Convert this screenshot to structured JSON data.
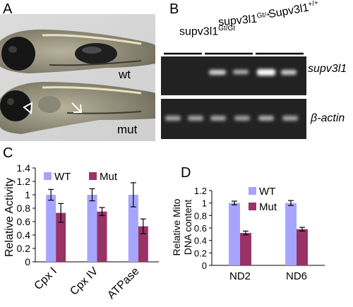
{
  "panels": {
    "a": {
      "label": "A",
      "fish_top_label": "wt",
      "fish_bottom_label": "mut"
    },
    "b": {
      "label": "B",
      "lanes": [
        {
          "main": "supv3l1",
          "sup": "Gt/Gt"
        },
        {
          "main": "supv3l1",
          "sup": "Gt/+"
        },
        {
          "main": "Supv3l1",
          "sup": "+/+"
        }
      ],
      "gel_top_label": "supv3l1",
      "gel_bottom_label_greek": "β",
      "gel_bottom_label_rest": "-actin"
    },
    "c": {
      "label": "C",
      "ylabel": "Relative Activity",
      "yticks": [
        "0",
        "0.2",
        "0.4",
        "0.6",
        "0.8",
        "1",
        "1.2",
        "1.4"
      ],
      "legend": [
        "WT",
        "Mut"
      ]
    },
    "d": {
      "label": "D",
      "ylabel_line1": "Relative Mito",
      "ylabel_line2": "DNA content",
      "yticks": [
        "0",
        "0.2",
        "0.4",
        "0.6",
        "0.8",
        "1",
        "1.2"
      ],
      "legend": [
        "WT",
        "Mut"
      ]
    }
  },
  "colors": {
    "wt": "#a5a5ff",
    "mut": "#993366"
  },
  "chart_data": [
    {
      "type": "bar",
      "panel": "C",
      "categories": [
        "Cpx I",
        "Cpx IV",
        "ATPase"
      ],
      "series": [
        {
          "name": "WT",
          "values": [
            1.0,
            1.0,
            1.0
          ],
          "errors": [
            0.08,
            0.09,
            0.18
          ]
        },
        {
          "name": "Mut",
          "values": [
            0.73,
            0.75,
            0.53
          ],
          "errors": [
            0.14,
            0.06,
            0.11
          ]
        }
      ],
      "ylabel": "Relative Activity",
      "ylim": [
        0,
        1.4
      ],
      "legend_position": "top"
    },
    {
      "type": "bar",
      "panel": "D",
      "categories": [
        "ND2",
        "ND6"
      ],
      "series": [
        {
          "name": "WT",
          "values": [
            1.0,
            1.0
          ],
          "errors": [
            0.03,
            0.04
          ]
        },
        {
          "name": "Mut",
          "values": [
            0.52,
            0.58
          ],
          "errors": [
            0.03,
            0.03
          ]
        }
      ],
      "ylabel": "Relative Mito DNA content",
      "ylim": [
        0,
        1.2
      ],
      "legend_position": "top-right"
    }
  ]
}
